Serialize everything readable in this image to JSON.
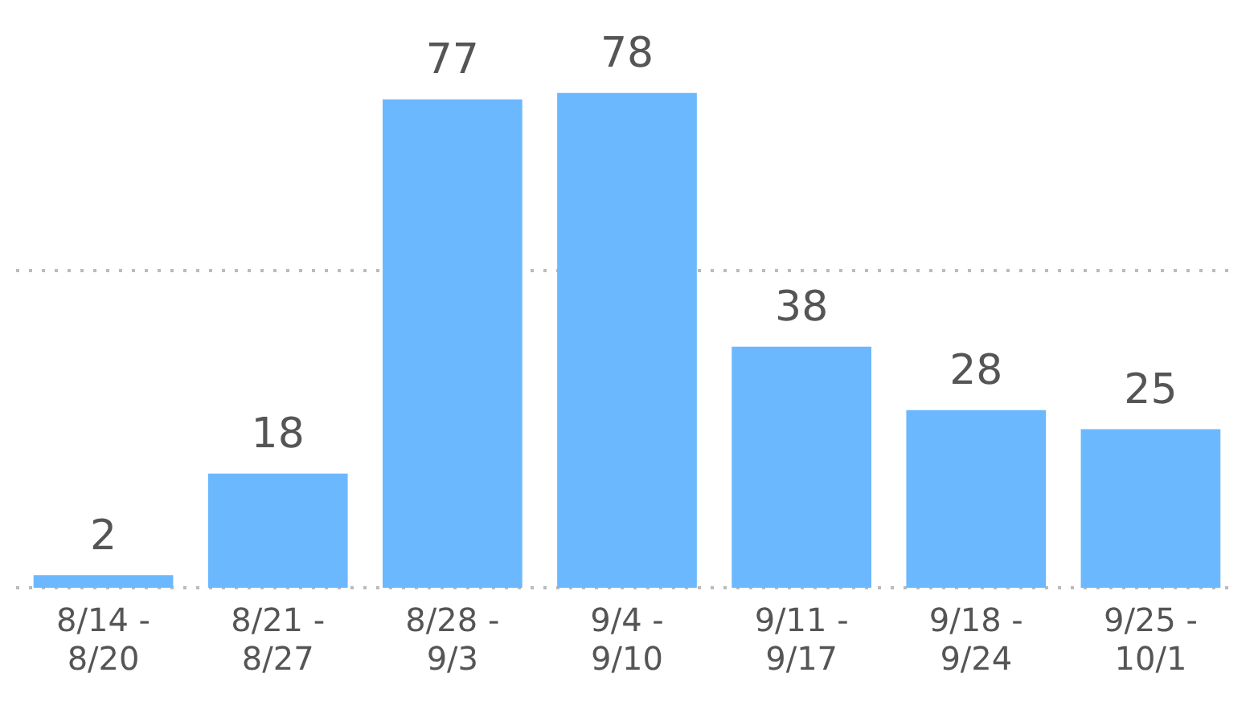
{
  "chart_data": {
    "type": "bar",
    "categories": [
      "8/14 - 8/20",
      "8/21 - 8/27",
      "8/28 - 9/3",
      "9/4 - 9/10",
      "9/11 - 9/17",
      "9/18 - 9/24",
      "9/25 - 10/1"
    ],
    "values": [
      2,
      18,
      77,
      78,
      38,
      28,
      25
    ],
    "color": "#6cb8ff",
    "ref_lines": [
      {
        "axis": "y",
        "value": 0,
        "color": "#bbbbbb",
        "line_style": "dotted"
      },
      {
        "axis": "y",
        "value": 50,
        "color": "#bbbbbb",
        "line_style": "dotted"
      }
    ],
    "tick_labels": "x",
    "data_labels": true
  }
}
